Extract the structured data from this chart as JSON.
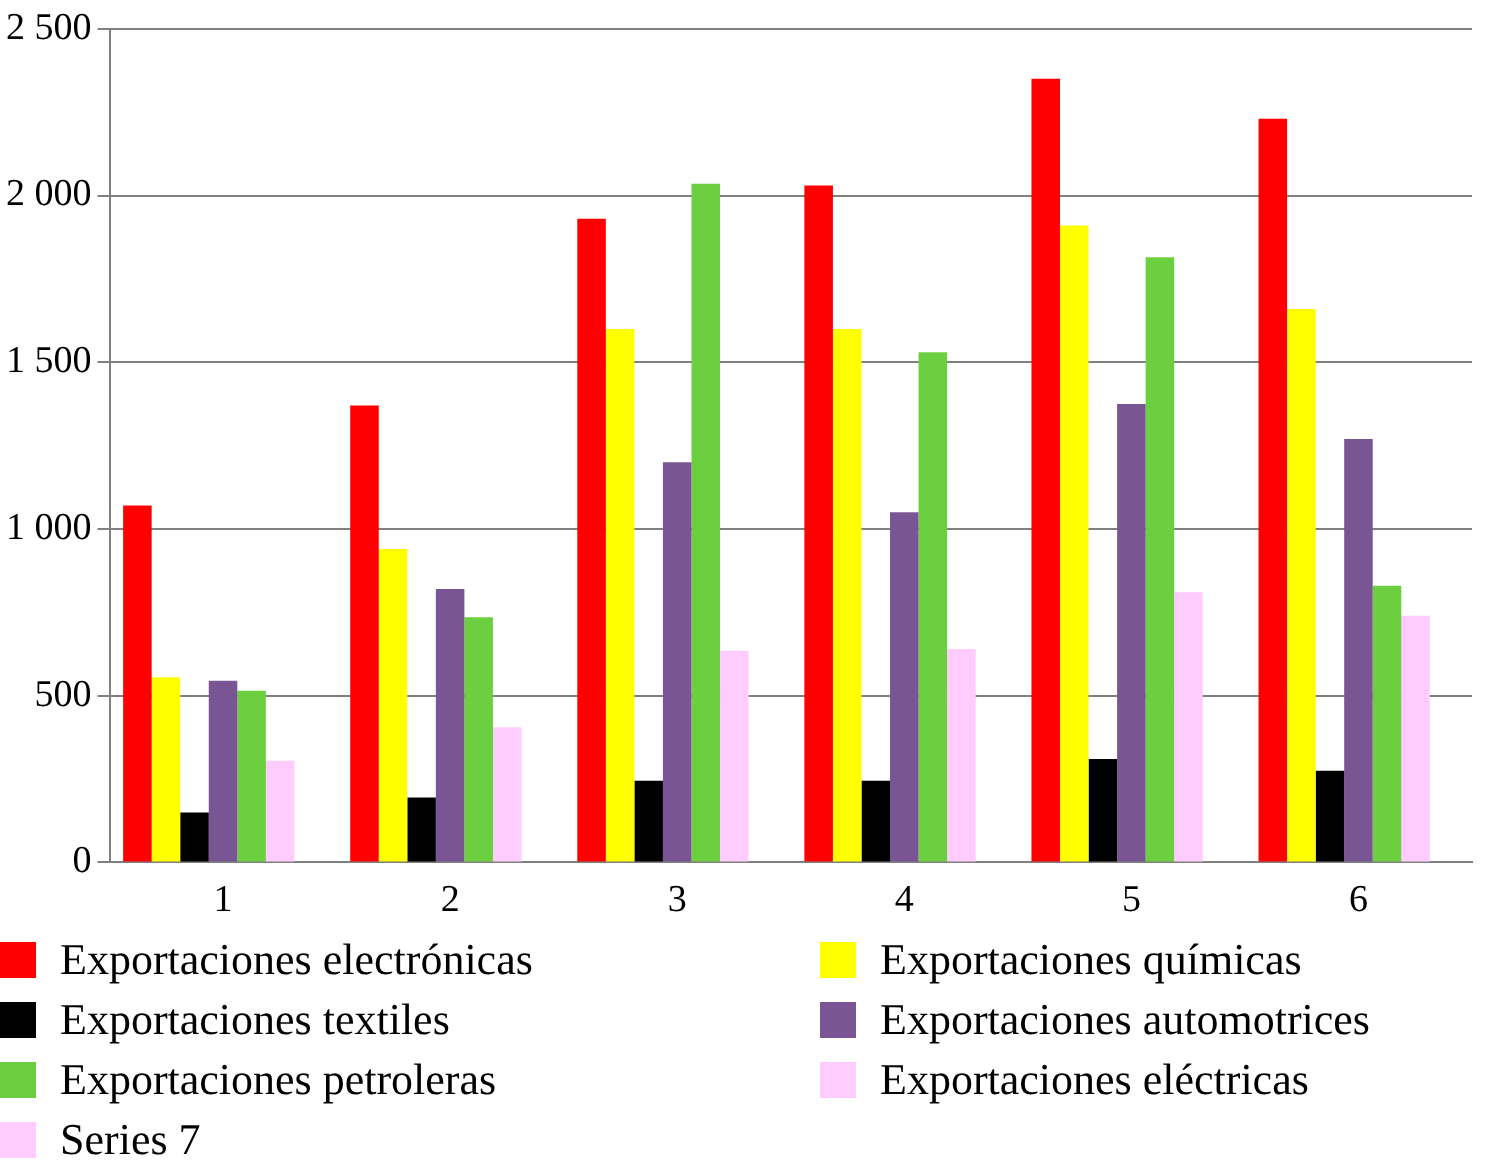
{
  "chart_data": {
    "type": "bar",
    "categories": [
      "1",
      "2",
      "3",
      "4",
      "5",
      "6"
    ],
    "series": [
      {
        "name": "Exportaciones electrónicas",
        "color": "#ff0000",
        "values": [
          1070,
          1370,
          1930,
          2030,
          2350,
          2230
        ]
      },
      {
        "name": "Exportaciones químicas",
        "color": "#ffff00",
        "values": [
          555,
          940,
          1600,
          1600,
          1910,
          1660
        ]
      },
      {
        "name": "Exportaciones textiles",
        "color": "#000000",
        "values": [
          150,
          195,
          245,
          245,
          310,
          275
        ]
      },
      {
        "name": "Exportaciones automotrices",
        "color": "#7a5593",
        "values": [
          545,
          820,
          1200,
          1050,
          1375,
          1270
        ]
      },
      {
        "name": "Exportaciones petroleras",
        "color": "#6ccf40",
        "values": [
          515,
          735,
          2035,
          1530,
          1815,
          830
        ]
      },
      {
        "name": "Exportaciones eléctricas",
        "color": "#ffccff",
        "values": [
          305,
          405,
          635,
          640,
          810,
          740
        ]
      },
      {
        "name": "Series 7",
        "color": "#ffccff",
        "values": [
          null,
          null,
          null,
          null,
          null,
          null
        ]
      }
    ],
    "ylim": [
      0,
      2500
    ],
    "yticks": [
      0,
      {
        "value": 500,
        "label": "500"
      },
      {
        "value": 1000,
        "label": "1 000"
      },
      {
        "value": 1500,
        "label": "1 500"
      },
      {
        "value": 2000,
        "label": "2 000"
      },
      {
        "value": 2500,
        "label": "2 500"
      }
    ],
    "grid": "y",
    "legend": "bottom"
  }
}
